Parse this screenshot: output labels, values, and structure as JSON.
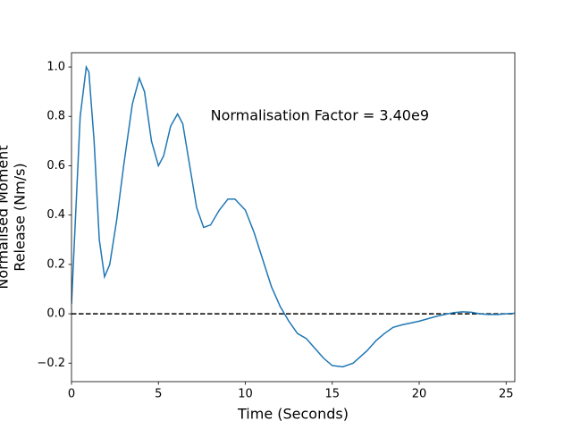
{
  "chart_data": {
    "type": "line",
    "xlabel": "Time (Seconds)",
    "ylabel": [
      "Normalised Moment",
      "Release (Nm/s)"
    ],
    "annotation": {
      "text": "Normalisation Factor = 3.40e9",
      "x": 8,
      "y": 0.8
    },
    "hline": 0,
    "x": [
      0,
      0.5,
      0.85,
      1.0,
      1.3,
      1.6,
      1.9,
      2.2,
      2.6,
      3.0,
      3.5,
      3.9,
      4.2,
      4.6,
      5.0,
      5.3,
      5.7,
      6.1,
      6.4,
      6.8,
      7.2,
      7.6,
      8.0,
      8.5,
      9.0,
      9.4,
      10.0,
      10.5,
      11.0,
      11.5,
      12.0,
      12.5,
      13.0,
      13.5,
      14.0,
      14.5,
      15.0,
      15.6,
      16.2,
      17.0,
      17.5,
      18.0,
      18.5,
      19.0,
      20.0,
      21.0,
      22.0,
      22.5,
      23.0,
      23.5,
      24.0,
      24.5,
      25.0,
      25.5
    ],
    "series": [
      {
        "name": "moment release",
        "color": "#1f77b4",
        "values": [
          0.04,
          0.8,
          1.0,
          0.98,
          0.7,
          0.3,
          0.15,
          0.2,
          0.38,
          0.6,
          0.85,
          0.955,
          0.9,
          0.7,
          0.6,
          0.64,
          0.76,
          0.81,
          0.77,
          0.6,
          0.43,
          0.35,
          0.36,
          0.42,
          0.465,
          0.465,
          0.42,
          0.33,
          0.22,
          0.11,
          0.03,
          -0.03,
          -0.08,
          -0.1,
          -0.14,
          -0.18,
          -0.21,
          -0.215,
          -0.2,
          -0.15,
          -0.11,
          -0.08,
          -0.055,
          -0.045,
          -0.03,
          -0.01,
          0.005,
          0.008,
          0.006,
          0.0,
          -0.003,
          -0.003,
          0.0,
          0.002
        ]
      }
    ],
    "xlim": [
      0,
      25.5
    ],
    "ylim": [
      -0.275,
      1.058
    ],
    "xticks": [
      0,
      5,
      10,
      15,
      20,
      25
    ],
    "yticks": [
      {
        "value": -0.2,
        "label": "−0.2"
      },
      {
        "value": 0,
        "label": "0.0"
      },
      {
        "value": 0.2,
        "label": "0.2"
      },
      {
        "value": 0.4,
        "label": "0.4"
      },
      {
        "value": 0.6,
        "label": "0.6"
      },
      {
        "value": 0.8,
        "label": "0.8"
      },
      {
        "value": 1.0,
        "label": "1.0"
      }
    ],
    "grid": false
  }
}
